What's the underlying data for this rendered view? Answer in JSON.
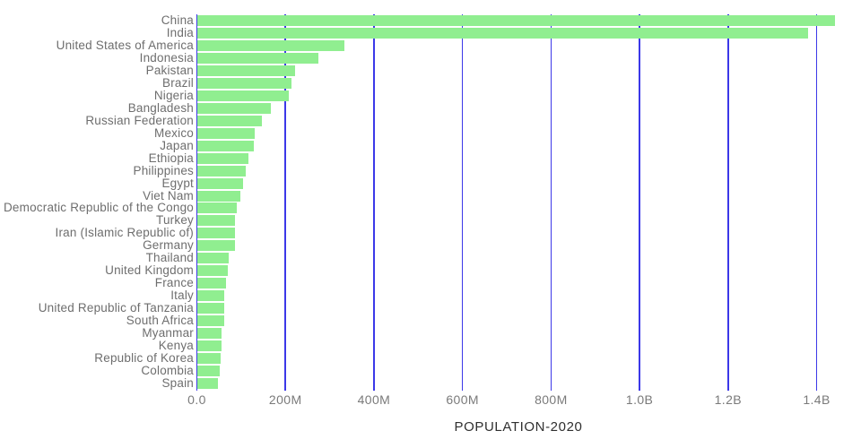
{
  "chart_data": {
    "type": "bar",
    "orientation": "horizontal",
    "title": "",
    "xlabel": "POPULATION-2020",
    "ylabel": "",
    "legend": "none",
    "grid": true,
    "xlim_millions": [
      0,
      1455
    ],
    "bar_color": "#90ee90",
    "grid_color": "#3c38e8",
    "label_color": "#6e6e6e",
    "tick_label_color": "#7a7a7a",
    "axis_title_color": "#2f2f2f",
    "categories": [
      "China",
      "India",
      "United States of America",
      "Indonesia",
      "Pakistan",
      "Brazil",
      "Nigeria",
      "Bangladesh",
      "Russian Federation",
      "Mexico",
      "Japan",
      "Ethiopia",
      "Philippines",
      "Egypt",
      "Viet Nam",
      "Democratic Republic of the Congo",
      "Turkey",
      "Iran (Islamic Republic of)",
      "Germany",
      "Thailand",
      "United Kingdom",
      "France",
      "Italy",
      "United Republic of Tanzania",
      "South Africa",
      "Myanmar",
      "Kenya",
      "Republic of Korea",
      "Colombia",
      "Spain"
    ],
    "values_millions": [
      1439.3,
      1380.0,
      331.0,
      273.5,
      220.9,
      212.6,
      206.1,
      164.7,
      145.9,
      128.9,
      126.5,
      115.0,
      109.6,
      102.3,
      97.3,
      89.6,
      84.3,
      84.0,
      83.8,
      69.8,
      67.9,
      65.3,
      60.5,
      59.7,
      59.3,
      54.4,
      53.8,
      51.3,
      50.9,
      46.8
    ],
    "x_ticks": [
      {
        "label": "0.0",
        "millions": 0
      },
      {
        "label": "200M",
        "millions": 200
      },
      {
        "label": "400M",
        "millions": 400
      },
      {
        "label": "600M",
        "millions": 600
      },
      {
        "label": "800M",
        "millions": 800
      },
      {
        "label": "1.0B",
        "millions": 1000
      },
      {
        "label": "1.2B",
        "millions": 1200
      },
      {
        "label": "1.4B",
        "millions": 1400
      }
    ]
  }
}
